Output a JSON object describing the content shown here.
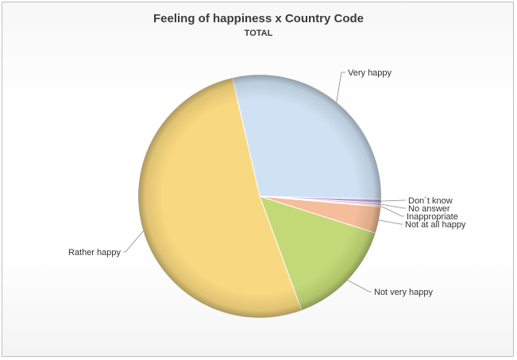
{
  "chart_data": {
    "type": "pie",
    "title": "Feeling of happiness x Country Code",
    "subtitle": "TOTAL",
    "legend": "none",
    "slices": [
      {
        "label": "Very happy",
        "value": 29.0,
        "color": "#cfe2f3"
      },
      {
        "label": "Don´t know",
        "value": 0.5,
        "color": "#b39ddb"
      },
      {
        "label": "No answer",
        "value": 0.3,
        "color": "#e7a9c0"
      },
      {
        "label": "Inappropriate",
        "value": 0.2,
        "color": "#f2d0b0"
      },
      {
        "label": "Not at all happy",
        "value": 3.5,
        "color": "#f5bd99"
      },
      {
        "label": "Not very happy",
        "value": 14.5,
        "color": "#c3d977"
      },
      {
        "label": "Rather happy",
        "value": 52.0,
        "color": "#f8d880"
      }
    ]
  }
}
